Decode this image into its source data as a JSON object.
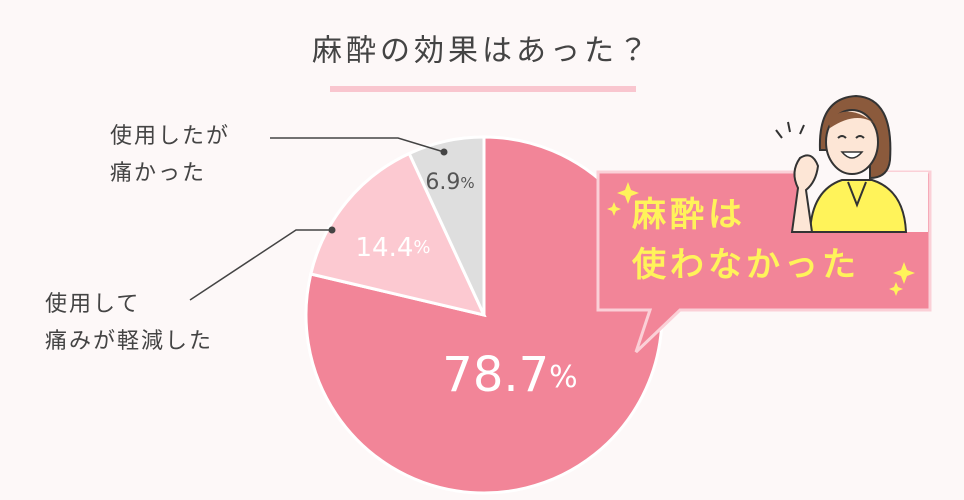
{
  "chart_data": {
    "type": "pie",
    "title": "麻酔の効果はあった？",
    "categories": [
      "麻酔は\n使わなかった",
      "使用して\n痛みが軽減した",
      "使用したが\n痛かった"
    ],
    "values": [
      78.7,
      14.4,
      6.9
    ],
    "value_labels": [
      "78.7%",
      "14.4%",
      "6.9%"
    ],
    "colors": [
      "#f28598",
      "#fcc9d1",
      "#dedede"
    ]
  }
}
